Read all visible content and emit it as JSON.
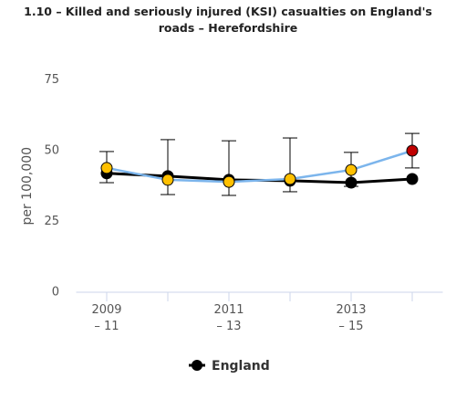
{
  "chart_data": {
    "type": "line",
    "title": "1.10 – Killed and seriously injured (KSI) casualties on England's roads – Herefordshire",
    "y_label": "per 100,000",
    "categories": [
      "2009\n– 11",
      null,
      "2011\n– 13",
      null,
      "2013\n– 15",
      null
    ],
    "ylim": [
      0,
      75
    ],
    "yticks": [
      0,
      25,
      50,
      75
    ],
    "series": [
      {
        "name": "England",
        "color": "#000000",
        "values": [
          42,
          41,
          39.7,
          39.4,
          38.7,
          40
        ]
      },
      {
        "color": "#7cb5ec",
        "values": [
          43.9,
          39.7,
          39,
          40,
          43.2,
          50
        ],
        "lower": [
          38.7,
          34.5,
          34.2,
          35.5,
          37.4,
          43.9
        ],
        "upper": [
          49.7,
          53.9,
          53.5,
          54.5,
          49.4,
          56.1
        ],
        "point_colors": [
          "#ffc000",
          "#ffc000",
          "#ffc000",
          "#ffc000",
          "#ffc000",
          "#c00000"
        ]
      }
    ],
    "legend": "bottom"
  }
}
